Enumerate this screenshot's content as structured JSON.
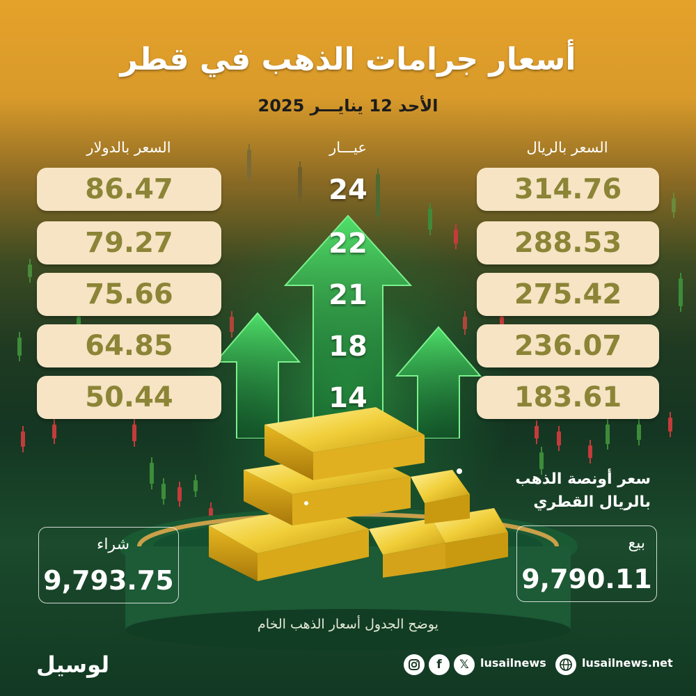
{
  "header": {
    "title": "أسعار جرامات الذهب في قطر",
    "date": "الأحد 12 ينايـــر 2025"
  },
  "columns": {
    "riyal": "السعر بالريال",
    "karat": "عيـــار",
    "dollar": "السعر بالدولار"
  },
  "rows": [
    {
      "karat": "24",
      "riyal": "314.76",
      "dollar": "86.47"
    },
    {
      "karat": "22",
      "riyal": "288.53",
      "dollar": "79.27"
    },
    {
      "karat": "21",
      "riyal": "275.42",
      "dollar": "75.66"
    },
    {
      "karat": "18",
      "riyal": "236.07",
      "dollar": "64.85"
    },
    {
      "karat": "14",
      "riyal": "183.61",
      "dollar": "50.44"
    }
  ],
  "ounce": {
    "label_line1": "سعر أونصة الذهب",
    "label_line2": "بالريال القطري",
    "sell_label": "بيع",
    "sell_value": "9,790.11",
    "buy_label": "شراء",
    "buy_value": "9,793.75"
  },
  "note": "يوضح الجدول أسعار الذهب الخام",
  "footer": {
    "logo": "لوسيل",
    "social_handle": "lusailnews",
    "website": "lusailnews.net",
    "icons": [
      "instagram-icon",
      "facebook-icon",
      "x-icon",
      "globe-icon"
    ]
  },
  "colors": {
    "box_bg": "#f6e4c4",
    "box_text": "#8c8436",
    "top_orange": "#e5a22a",
    "bottom_green": "#123923"
  }
}
